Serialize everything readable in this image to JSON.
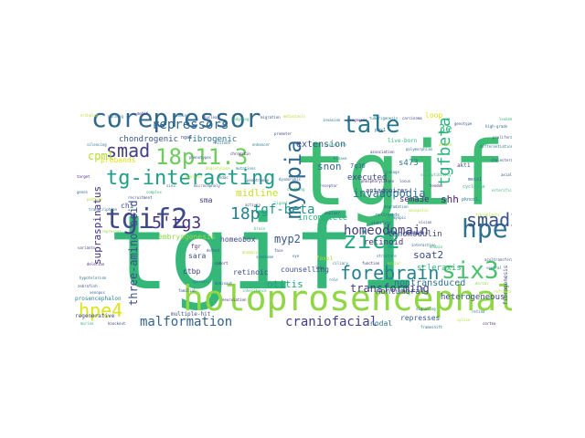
{
  "words": [
    {
      "text": "tgif1",
      "color": "#35b779"
    },
    {
      "text": "tgif",
      "color": "#3dbc74"
    },
    {
      "text": "holoprosencephaly",
      "color": "#8fd744"
    },
    {
      "text": "corepressor",
      "color": "#31688e"
    },
    {
      "text": "tgif2",
      "color": "#3e4989"
    },
    {
      "text": "tale",
      "color": "#2a788e"
    },
    {
      "text": "hpe",
      "color": "#2c728e"
    },
    {
      "text": "18p11.3",
      "color": "#6ccd5a"
    },
    {
      "text": "tg-interacting",
      "color": "#1f9e89"
    },
    {
      "text": "six3",
      "color": "#4ac16d"
    },
    {
      "text": "zic2",
      "color": "#25ab82"
    },
    {
      "text": "myopia",
      "color": "#31688e"
    },
    {
      "text": "smad",
      "color": "#433e85"
    },
    {
      "text": "smad2",
      "color": "#3b528b"
    },
    {
      "text": "forebrain",
      "color": "#27808e"
    },
    {
      "text": "tgfbeta",
      "color": "#2db27d"
    },
    {
      "text": "hpe4",
      "color": "#dde318"
    },
    {
      "text": "5'tg3",
      "color": "#46327e"
    },
    {
      "text": "18p",
      "color": "#26828e"
    },
    {
      "text": "tgf-beta",
      "color": "#1f958b"
    },
    {
      "text": "homeodomain",
      "color": "#433e85"
    },
    {
      "text": "repressors",
      "color": "#31688e"
    },
    {
      "text": "craniofacial",
      "color": "#433e85"
    },
    {
      "text": "malformation",
      "color": "#33638d"
    },
    {
      "text": "transforming",
      "color": "#443983"
    },
    {
      "text": "three-amino-acid",
      "color": "#3b528b"
    },
    {
      "text": "invadopodia",
      "color": "#2c728e"
    },
    {
      "text": "cpml",
      "color": "#b5de2b"
    },
    {
      "text": "myp2",
      "color": "#38598c"
    },
    {
      "text": "supraspinatus",
      "color": "#472d7b"
    },
    {
      "text": "soat2",
      "color": "#3e4989"
    },
    {
      "text": "otitis",
      "color": "#1fa088"
    },
    {
      "text": "midline",
      "color": "#c8e020"
    },
    {
      "text": "snon",
      "color": "#31688e"
    },
    {
      "text": "shh",
      "color": "#482071"
    },
    {
      "text": "nontransduced",
      "color": "#2c728e"
    },
    {
      "text": "extension",
      "color": "#3b528b"
    },
    {
      "text": "chondrogenic",
      "color": "#39568c"
    },
    {
      "text": "fibrogenic",
      "color": "#2c728e"
    },
    {
      "text": "executed",
      "color": "#3e4989"
    },
    {
      "text": "sema3e",
      "color": "#482878"
    },
    {
      "text": "s473",
      "color": "#2a788e"
    },
    {
      "text": "tenomodulin",
      "color": "#3e4989"
    },
    {
      "text": "heterogeneous",
      "color": "#3e4989"
    },
    {
      "text": "scleraxis",
      "color": "#2db27d"
    },
    {
      "text": "retinoid",
      "color": "#46327e"
    },
    {
      "text": "nontumoral",
      "color": "#3b528b"
    },
    {
      "text": "incomplete",
      "color": "#2db27d"
    },
    {
      "text": "homeobox",
      "color": "#3e4989"
    },
    {
      "text": "retinoic",
      "color": "#3e4989"
    },
    {
      "text": "ctbp",
      "color": "#433e85"
    },
    {
      "text": "counselling",
      "color": "#3b528b"
    },
    {
      "text": "nodal",
      "color": "#2c728e"
    },
    {
      "text": "represses",
      "color": "#38598c"
    },
    {
      "text": "regenerative",
      "color": "#3e4989"
    },
    {
      "text": "prosencephalon",
      "color": "#26828e"
    },
    {
      "text": "probands",
      "color": "#dde318"
    },
    {
      "text": "loop",
      "color": "#dde318"
    },
    {
      "text": "sara",
      "color": "#3b528b"
    },
    {
      "text": "chi",
      "color": "#3e4989"
    },
    {
      "text": "sma",
      "color": "#443983"
    },
    {
      "text": "akt1",
      "color": "#3b528b"
    },
    {
      "text": "3e",
      "color": "#35b779"
    },
    {
      "text": "7q36",
      "color": "#31688e"
    },
    {
      "text": "antagonizes",
      "color": "#3e4989"
    },
    {
      "text": "multiple-hit",
      "color": "#3b528b"
    },
    {
      "text": "live-born",
      "color": "#35b779"
    },
    {
      "text": "fibrogenesis",
      "color": "#3e4989"
    },
    {
      "text": "developmental",
      "color": "#2a788e"
    },
    {
      "text": "heterozygous",
      "color": "#3e4989"
    },
    {
      "text": "fgr",
      "color": "#482878"
    },
    {
      "text": "gestation-matched",
      "color": "#b5de2b"
    },
    {
      "text": "nga1",
      "color": "#3e4989"
    },
    {
      "text": "pbx1",
      "color": "#2c728e"
    },
    {
      "text": "meis1",
      "color": "#31688e"
    },
    {
      "text": "pknox1",
      "color": "#2a788e"
    },
    {
      "text": "foxo1",
      "color": "#b5de2b"
    },
    {
      "text": "embryogenesis",
      "color": "#8fd744"
    },
    {
      "text": "retinoids",
      "color": "#2c728e"
    },
    {
      "text": "cyclopia",
      "color": "#35b779"
    },
    {
      "text": "telencephalon",
      "color": "#3e4989"
    },
    {
      "text": "neurulation",
      "color": "#482878"
    },
    {
      "text": "phenotypes",
      "color": "#3b528b"
    },
    {
      "text": "mutations",
      "color": "#26828e"
    },
    {
      "text": "penetrance",
      "color": "#3e4989"
    },
    {
      "text": "transcription",
      "color": "#2a788e"
    },
    {
      "text": "repressor",
      "color": "#8fd744"
    },
    {
      "text": "variants",
      "color": "#3e4989"
    },
    {
      "text": "deletion",
      "color": "#482878"
    },
    {
      "text": "hypotelorism",
      "color": "#2c728e"
    },
    {
      "text": "agenesis",
      "color": "#b5de2b"
    },
    {
      "text": "microcephaly",
      "color": "#3b528b"
    },
    {
      "text": "dysmorphic",
      "color": "#31688e"
    },
    {
      "text": "clefting",
      "color": "#35b779"
    },
    {
      "text": "incisor",
      "color": "#3e4989"
    },
    {
      "text": "signaling",
      "color": "#2a788e"
    },
    {
      "text": "tendon",
      "color": "#482878"
    },
    {
      "text": "fibroblasts",
      "color": "#b5de2b"
    },
    {
      "text": "proliferation",
      "color": "#3b528b"
    },
    {
      "text": "differentiation",
      "color": "#2c728e"
    },
    {
      "text": "cholesterol",
      "color": "#3e4989"
    },
    {
      "text": "esterification",
      "color": "#35b779"
    },
    {
      "text": "acyltransferase",
      "color": "#3b528b"
    },
    {
      "text": "ventral",
      "color": "#2a788e"
    },
    {
      "text": "dorsal",
      "color": "#8fd744"
    },
    {
      "text": "patterning",
      "color": "#3e4989"
    },
    {
      "text": "cortex",
      "color": "#482878"
    },
    {
      "text": "retina",
      "color": "#2c728e"
    },
    {
      "text": "refractive",
      "color": "#b5de2b"
    },
    {
      "text": "axial",
      "color": "#3b528b"
    },
    {
      "text": "high-grade",
      "color": "#31688e"
    },
    {
      "text": "leukemia",
      "color": "#35b779"
    },
    {
      "text": "carcinoma",
      "color": "#3e4989"
    },
    {
      "text": "tumorigenesis",
      "color": "#2a788e"
    },
    {
      "text": "prognosis",
      "color": "#482878"
    },
    {
      "text": "invasion",
      "color": "#2c728e"
    },
    {
      "text": "metastasis",
      "color": "#b5de2b"
    },
    {
      "text": "migration",
      "color": "#3b528b"
    },
    {
      "text": "hedgehog",
      "color": "#35b779"
    },
    {
      "text": "nuclear",
      "color": "#3e4989"
    },
    {
      "text": "binding",
      "color": "#2a788e"
    },
    {
      "text": "motif",
      "color": "#482878"
    },
    {
      "text": "paralog",
      "color": "#2c728e"
    },
    {
      "text": "ortholog",
      "color": "#b5de2b"
    },
    {
      "text": "zebrafish",
      "color": "#3b528b"
    },
    {
      "text": "xenopus",
      "color": "#31688e"
    },
    {
      "text": "murine",
      "color": "#35b779"
    },
    {
      "text": "knockout",
      "color": "#3e4989"
    },
    {
      "text": "null",
      "color": "#2a788e"
    },
    {
      "text": "lethal",
      "color": "#482878"
    },
    {
      "text": "prenatal",
      "color": "#2c728e"
    },
    {
      "text": "fetal",
      "color": "#b5de2b"
    },
    {
      "text": "diagnosis",
      "color": "#3b528b"
    },
    {
      "text": "screening",
      "color": "#35b779"
    },
    {
      "text": "sequencing",
      "color": "#3e4989"
    },
    {
      "text": "exon",
      "color": "#2a788e"
    },
    {
      "text": "missense",
      "color": "#482878"
    },
    {
      "text": "frameshift",
      "color": "#2c728e"
    },
    {
      "text": "splice",
      "color": "#b5de2b"
    },
    {
      "text": "haploinsufficiency",
      "color": "#3b528b"
    },
    {
      "text": "dominant",
      "color": "#31688e"
    },
    {
      "text": "inheritance",
      "color": "#35b779"
    },
    {
      "text": "familial",
      "color": "#3e4989"
    },
    {
      "text": "sporadic",
      "color": "#2a788e"
    },
    {
      "text": "cohort",
      "color": "#482878"
    },
    {
      "text": "syndrome",
      "color": "#2c728e"
    },
    {
      "text": "anomaly",
      "color": "#b5de2b"
    },
    {
      "text": "defect",
      "color": "#3b528b"
    },
    {
      "text": "brain",
      "color": "#35b779"
    },
    {
      "text": "face",
      "color": "#3e4989"
    },
    {
      "text": "eye",
      "color": "#2a788e"
    },
    {
      "text": "lens",
      "color": "#482878"
    },
    {
      "text": "ciliary",
      "color": "#2c728e"
    },
    {
      "text": "ocular",
      "color": "#b5de2b"
    },
    {
      "text": "vision",
      "color": "#3b528b"
    },
    {
      "text": "myopic",
      "color": "#31688e"
    },
    {
      "text": "susceptibility",
      "color": "#35b779"
    },
    {
      "text": "locus",
      "color": "#3e4989"
    },
    {
      "text": "linkage",
      "color": "#2a788e"
    },
    {
      "text": "association",
      "color": "#482878"
    },
    {
      "text": "polymorphism",
      "color": "#2c728e"
    },
    {
      "text": "allele",
      "color": "#b5de2b"
    },
    {
      "text": "genotype",
      "color": "#3b528b"
    },
    {
      "text": "expression",
      "color": "#35b779"
    },
    {
      "text": "promoter",
      "color": "#3e4989"
    },
    {
      "text": "enhancer",
      "color": "#2a788e"
    },
    {
      "text": "chromatin",
      "color": "#482878"
    },
    {
      "text": "histone",
      "color": "#2c728e"
    },
    {
      "text": "deacetylase",
      "color": "#b5de2b"
    },
    {
      "text": "hdac",
      "color": "#3b528b"
    },
    {
      "text": "sin3",
      "color": "#31688e"
    },
    {
      "text": "complex",
      "color": "#35b779"
    },
    {
      "text": "recruitment",
      "color": "#3e4989"
    },
    {
      "text": "silencing",
      "color": "#2a788e"
    },
    {
      "text": "target",
      "color": "#482878"
    },
    {
      "text": "genes",
      "color": "#2c728e"
    },
    {
      "text": "pathway",
      "color": "#b5de2b"
    },
    {
      "text": "activin",
      "color": "#3b528b"
    },
    {
      "text": "ligand",
      "color": "#35b779"
    },
    {
      "text": "receptor",
      "color": "#3e4989"
    },
    {
      "text": "kinase",
      "color": "#2a788e"
    },
    {
      "text": "phosphorylation",
      "color": "#482878"
    },
    {
      "text": "degradation",
      "color": "#2c728e"
    },
    {
      "text": "ubiquitin",
      "color": "#b5de2b"
    },
    {
      "text": "stability",
      "color": "#3b528b"
    },
    {
      "text": "interaction",
      "color": "#31688e"
    },
    {
      "text": "domain",
      "color": "#35b779"
    },
    {
      "text": "protein",
      "color": "#3e4989"
    },
    {
      "text": "structure",
      "color": "#2a788e"
    },
    {
      "text": "function",
      "color": "#482878"
    },
    {
      "text": "role",
      "color": "#2c728e"
    }
  ]
}
